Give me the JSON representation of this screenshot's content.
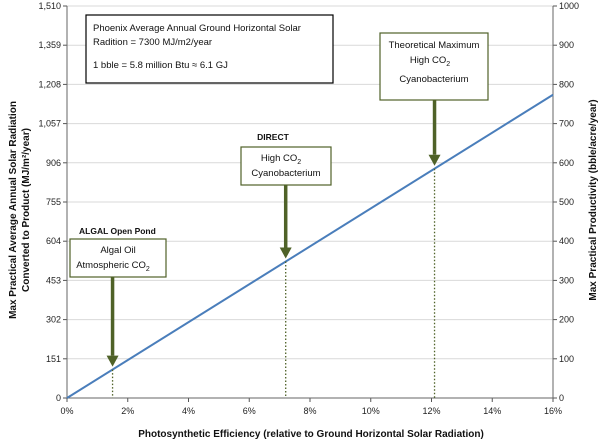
{
  "chart_data": {
    "type": "line",
    "x_axis": {
      "label": "Photosynthetic Efficiency (relative to Ground Horizontal Solar Radiation)",
      "range": [
        0,
        16
      ],
      "ticks": [
        "0%",
        "2%",
        "4%",
        "6%",
        "8%",
        "10%",
        "12%",
        "14%",
        "16%"
      ]
    },
    "y_left": {
      "label_line1": "Max Practical Average Annual Solar Radiation",
      "label_line2": "Converted to Product  (MJ/m²/year)",
      "range": [
        0,
        1510
      ],
      "ticks": [
        "0",
        "151",
        "302",
        "453",
        "604",
        "755",
        "906",
        "1,057",
        "1,208",
        "1,359",
        "1,510"
      ]
    },
    "y_right": {
      "label": "Max Practical Productivity (bble/acre/year)",
      "range": [
        0,
        1000
      ],
      "ticks": [
        "0",
        "100",
        "200",
        "300",
        "400",
        "500",
        "600",
        "700",
        "800",
        "900",
        "1000"
      ]
    },
    "grid": true,
    "series": [
      {
        "x": [
          0,
          16
        ],
        "y_left": [
          0,
          1168
        ],
        "color": "#4a7ebb"
      }
    ],
    "annotations": [
      {
        "id": "algal",
        "x": 1.5,
        "title": "ALGAL Open Pond",
        "line1": "Algal Oil",
        "line2_main": "Atmospheric CO",
        "line2_sub": "2"
      },
      {
        "id": "direct",
        "x": 7.2,
        "title": "DIRECT",
        "line1_main": "High CO",
        "line1_sub": "2",
        "line2": "Cyanobacterium"
      },
      {
        "id": "theoretical",
        "x": 12.1,
        "line1": "Theoretical Maximum",
        "line2_main": "High CO",
        "line2_sub": "2",
        "line3": "Cyanobacterium"
      }
    ],
    "info_box": {
      "line1": "Phoenix Average Annual Ground Horizontal Solar",
      "line2": "Radition = 7300 MJ/m2/year",
      "line3": "1 bble = 5.8 million Btu ≈ 6.1 GJ"
    },
    "colors": {
      "line": "#4a7ebb",
      "arrow": "#4f6228",
      "grid": "#d9d9d9",
      "box_border": "#4f6228"
    }
  }
}
